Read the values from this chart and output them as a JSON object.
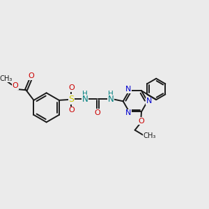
{
  "bg_color": "#ebebeb",
  "bond_color": "#1a1a1a",
  "n_color": "#0000cc",
  "o_color": "#cc0000",
  "s_color": "#cccc00",
  "nh_color": "#008080",
  "lw": 1.4,
  "fs": 8.5,
  "xlim": [
    0,
    10
  ],
  "ylim": [
    0,
    10
  ]
}
